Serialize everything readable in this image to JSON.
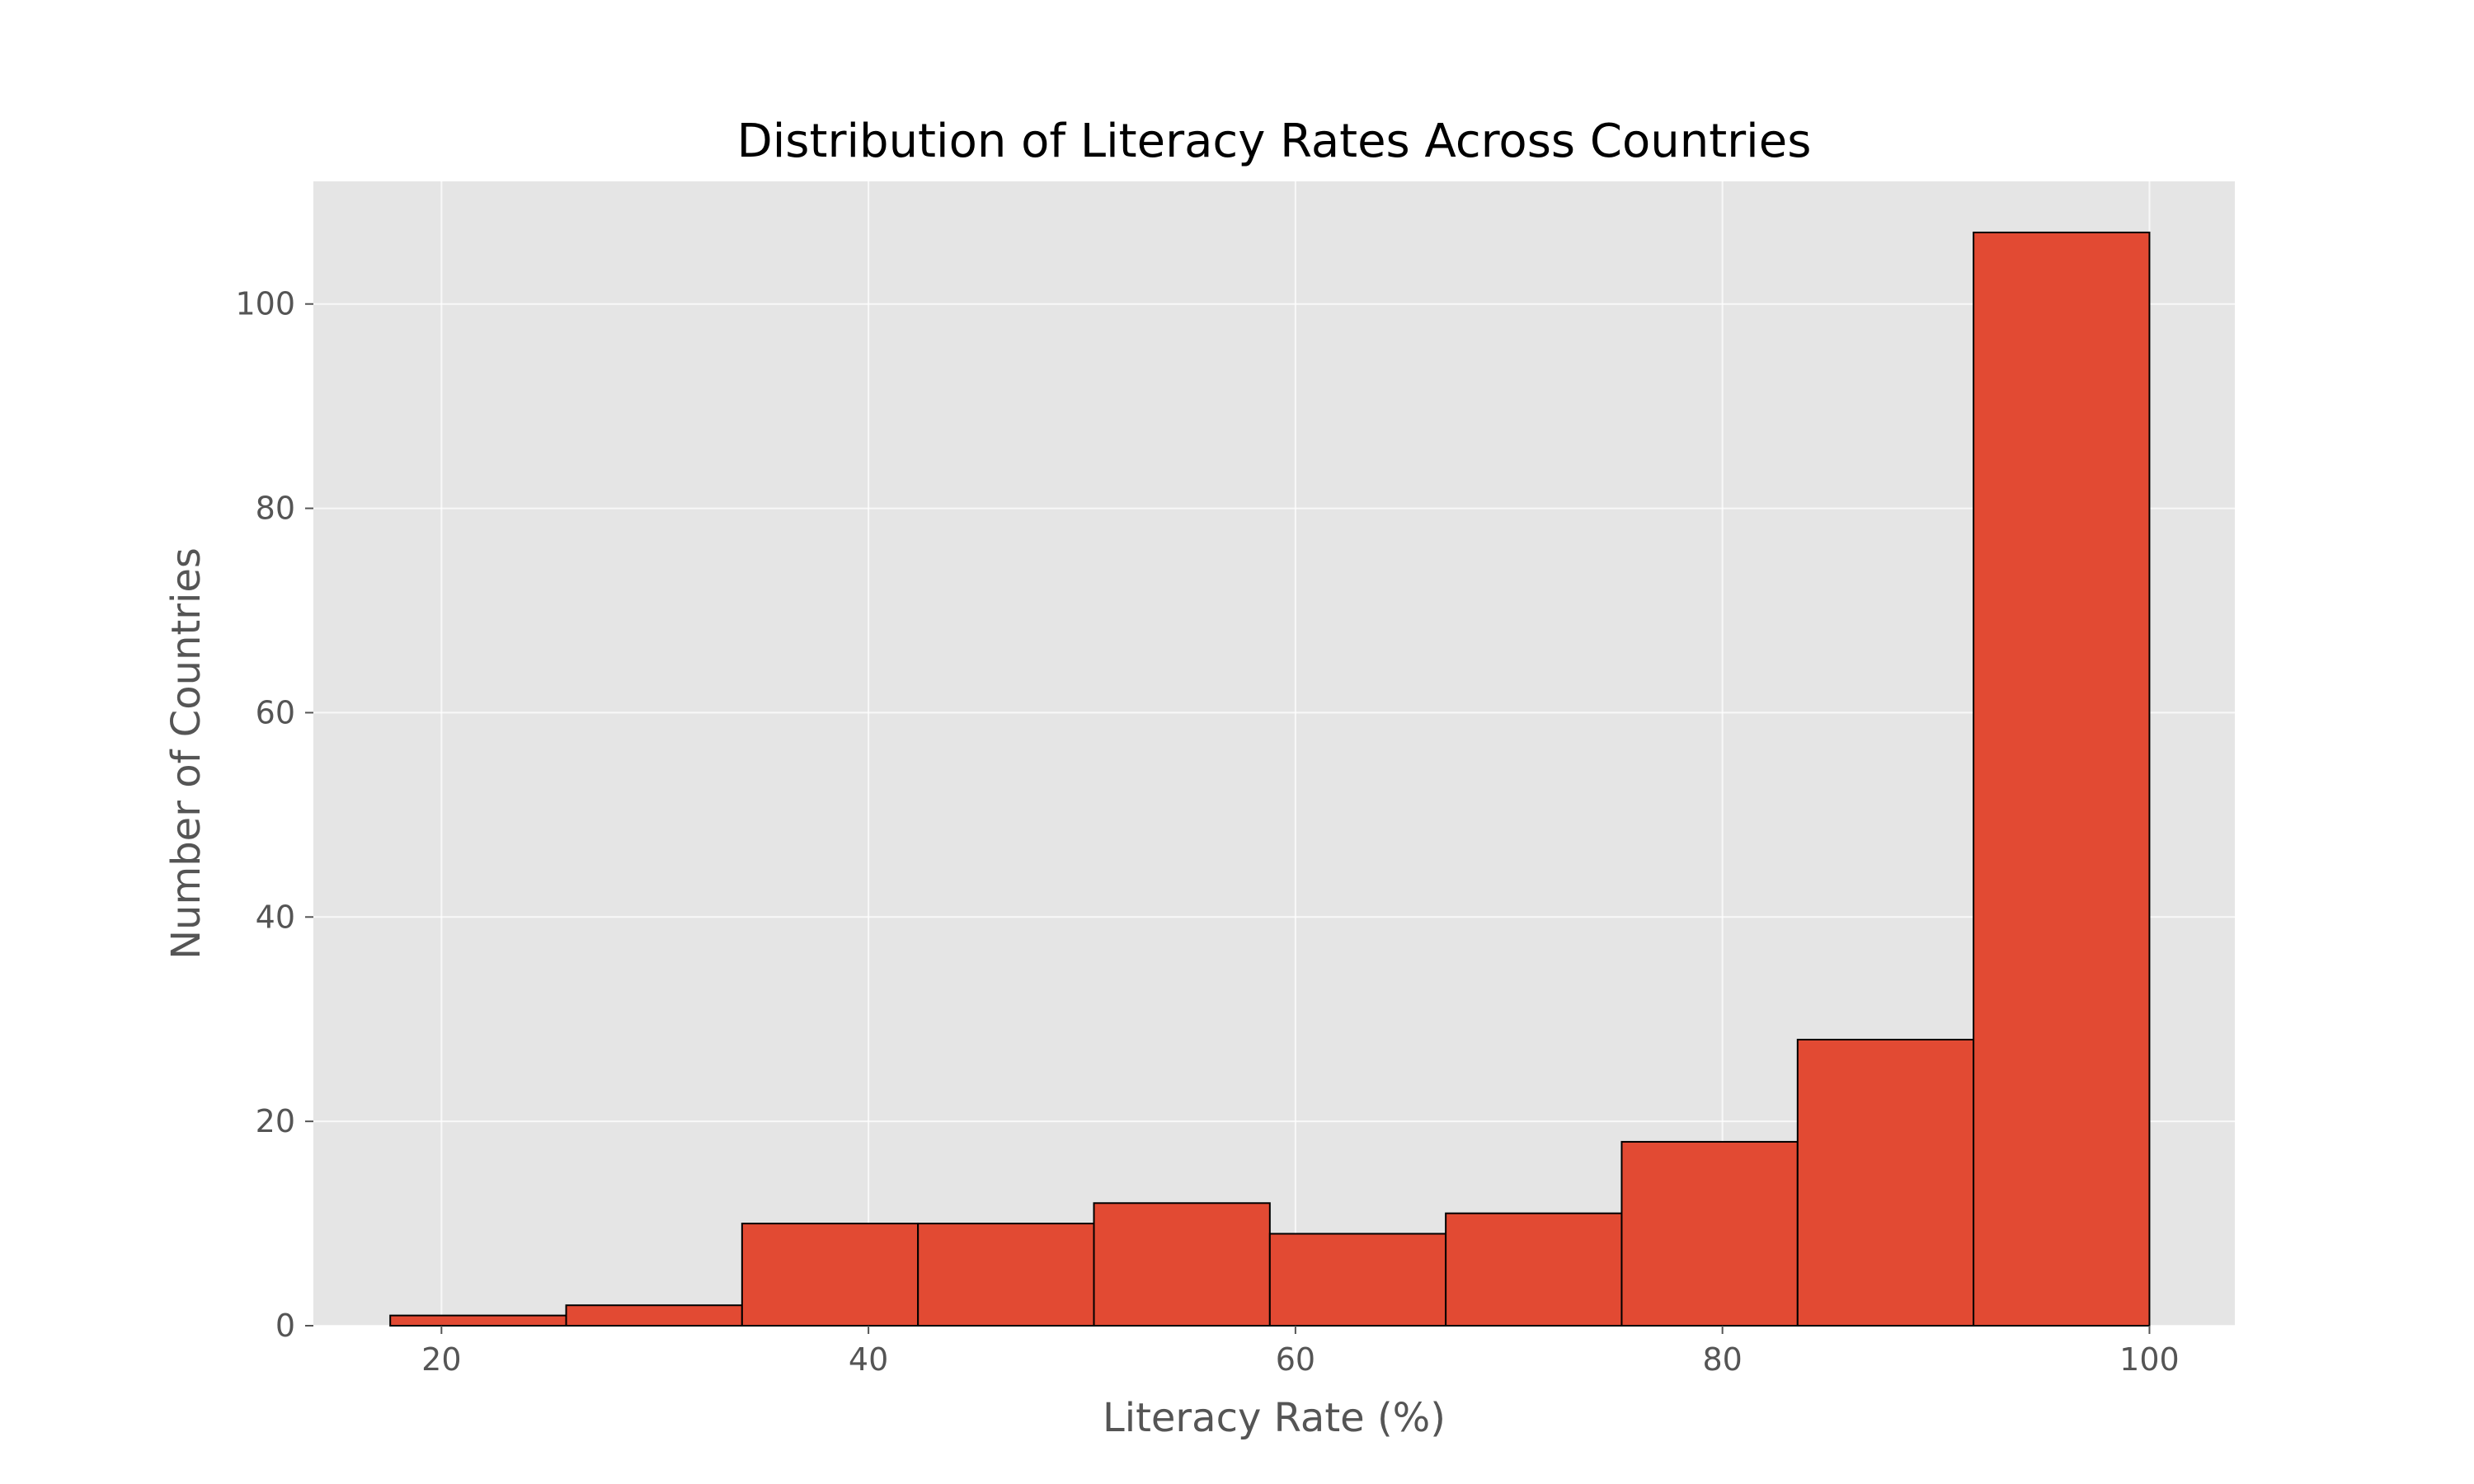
{
  "chart_data": {
    "type": "bar",
    "title": "Distribution of Literacy Rates Across Countries",
    "xlabel": "Literacy Rate (%)",
    "ylabel": "Number of Countries",
    "xlim": [
      14,
      104
    ],
    "ylim": [
      0,
      112
    ],
    "x_ticks": [
      20,
      40,
      60,
      80,
      100
    ],
    "y_ticks": [
      0,
      20,
      40,
      60,
      80,
      100
    ],
    "grid": true,
    "bar_color": "#E24A33",
    "edge_color": "#000000",
    "background_color": "#E5E5E5",
    "bins": [
      {
        "start": 17.6,
        "end": 25.84,
        "count": 1
      },
      {
        "start": 25.84,
        "end": 34.08,
        "count": 2
      },
      {
        "start": 34.08,
        "end": 42.32,
        "count": 10
      },
      {
        "start": 42.32,
        "end": 50.56,
        "count": 10
      },
      {
        "start": 50.56,
        "end": 58.8,
        "count": 12
      },
      {
        "start": 58.8,
        "end": 67.04,
        "count": 9
      },
      {
        "start": 67.04,
        "end": 75.28,
        "count": 11
      },
      {
        "start": 75.28,
        "end": 83.52,
        "count": 18
      },
      {
        "start": 83.52,
        "end": 91.76,
        "count": 28
      },
      {
        "start": 91.76,
        "end": 100.0,
        "count": 107
      }
    ]
  }
}
